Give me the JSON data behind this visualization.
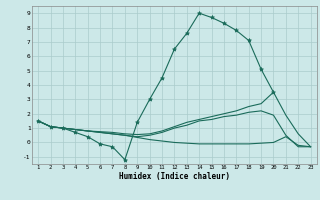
{
  "xlabel": "Humidex (Indice chaleur)",
  "bg_color": "#cce8e8",
  "grid_color": "#aacccc",
  "line_color": "#1a6b5a",
  "xlim": [
    0.5,
    23.5
  ],
  "ylim": [
    -1.5,
    9.5
  ],
  "xticks": [
    1,
    2,
    3,
    4,
    5,
    6,
    7,
    8,
    9,
    10,
    11,
    12,
    13,
    14,
    15,
    16,
    17,
    18,
    19,
    20,
    21,
    22,
    23
  ],
  "yticks": [
    -1,
    0,
    1,
    2,
    3,
    4,
    5,
    6,
    7,
    8,
    9
  ],
  "line1_x": [
    1,
    2,
    3,
    4,
    5,
    6,
    7,
    8,
    9,
    10,
    11,
    12,
    13,
    14,
    15,
    16,
    17,
    18,
    19,
    20
  ],
  "line1_y": [
    1.5,
    1.1,
    1.0,
    0.7,
    0.4,
    -0.1,
    -0.3,
    -1.2,
    1.4,
    3.0,
    4.5,
    6.5,
    7.6,
    9.0,
    8.7,
    8.3,
    7.8,
    7.1,
    5.1,
    3.5
  ],
  "line2_x": [
    1,
    2,
    3,
    4,
    5,
    6,
    7,
    8,
    9,
    10,
    11,
    12,
    13,
    14,
    15,
    16,
    17,
    18,
    19,
    20,
    21,
    22,
    23
  ],
  "line2_y": [
    1.5,
    1.1,
    1.0,
    0.9,
    0.8,
    0.75,
    0.7,
    0.6,
    0.55,
    0.6,
    0.8,
    1.1,
    1.4,
    1.6,
    1.8,
    2.0,
    2.2,
    2.5,
    2.7,
    3.5,
    1.9,
    0.6,
    -0.3
  ],
  "line3_x": [
    1,
    2,
    3,
    4,
    5,
    6,
    7,
    8,
    9,
    10,
    11,
    12,
    13,
    14,
    15,
    16,
    17,
    18,
    19,
    20,
    21,
    22,
    23
  ],
  "line3_y": [
    1.5,
    1.1,
    1.0,
    0.9,
    0.8,
    0.7,
    0.6,
    0.5,
    0.35,
    0.2,
    0.1,
    0.0,
    -0.05,
    -0.1,
    -0.1,
    -0.1,
    -0.1,
    -0.1,
    -0.05,
    0.0,
    0.4,
    -0.2,
    -0.3
  ],
  "line4_x": [
    1,
    2,
    3,
    4,
    5,
    6,
    7,
    8,
    9,
    10,
    11,
    12,
    13,
    14,
    15,
    16,
    17,
    18,
    19,
    20,
    21,
    22,
    23
  ],
  "line4_y": [
    1.5,
    1.1,
    1.0,
    0.9,
    0.8,
    0.7,
    0.6,
    0.5,
    0.4,
    0.5,
    0.7,
    1.0,
    1.2,
    1.5,
    1.6,
    1.8,
    1.9,
    2.1,
    2.2,
    1.9,
    0.5,
    -0.3,
    -0.3
  ]
}
